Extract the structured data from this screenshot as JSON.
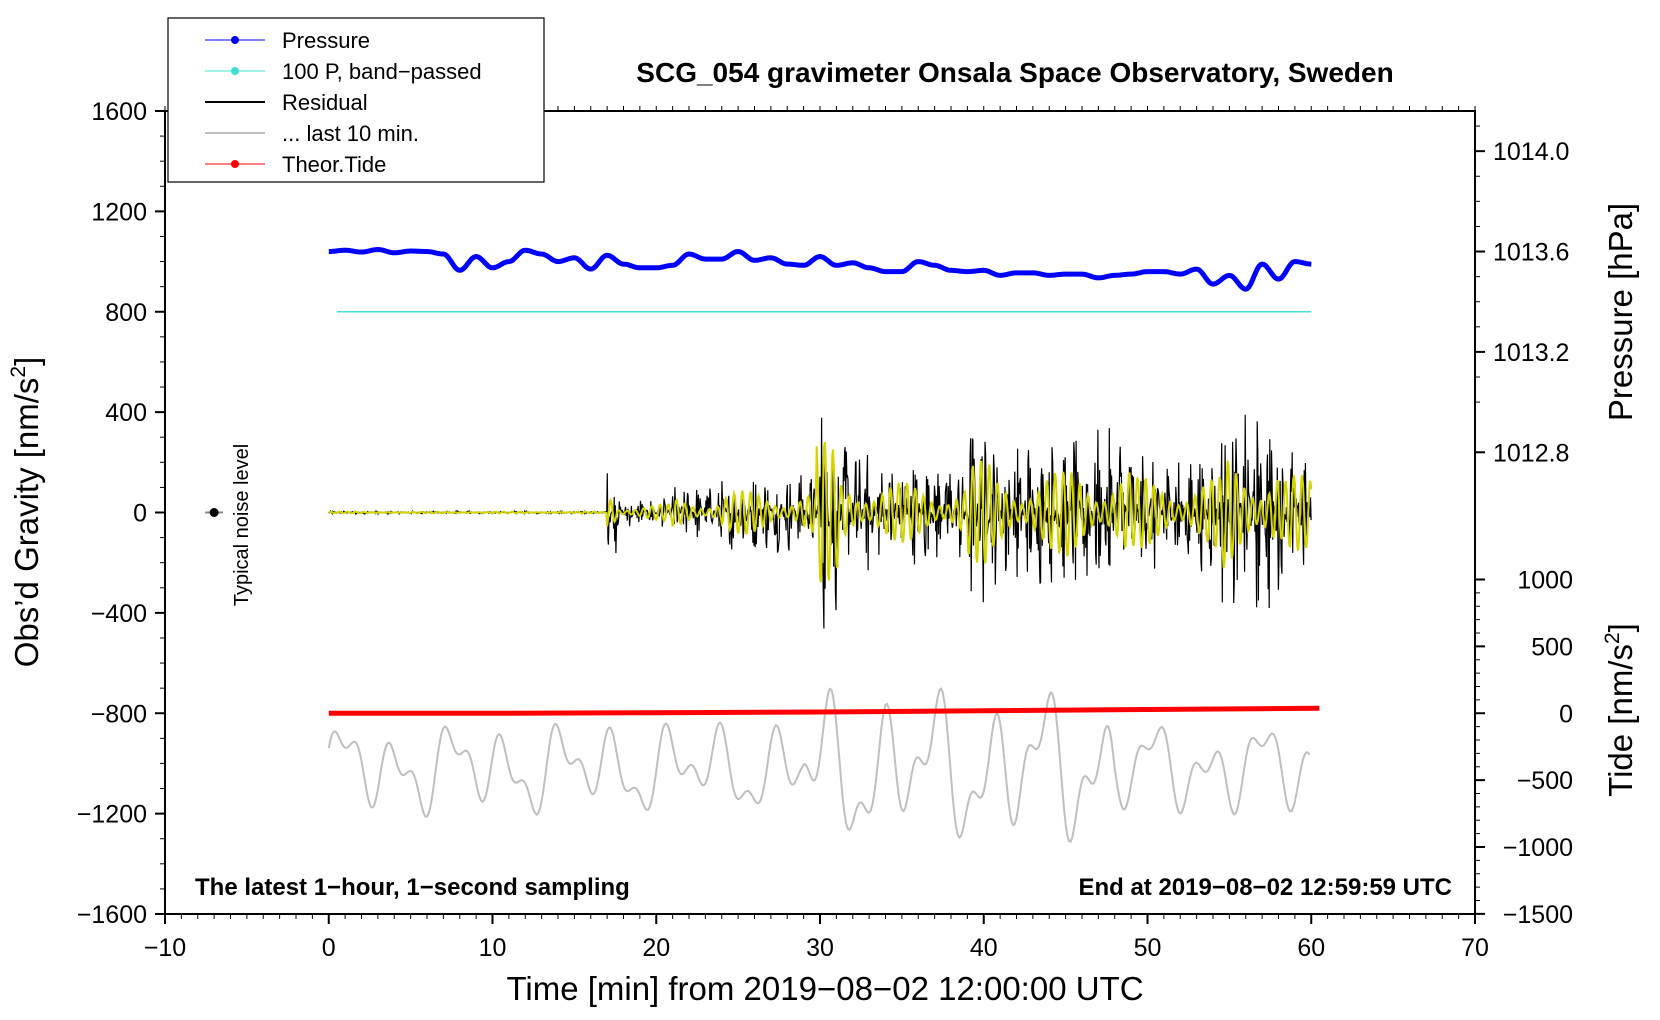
{
  "colors": {
    "pressure": "#0000ff",
    "bandpassed": "#40e0d0",
    "residual": "#000000",
    "last10": "#bfbfbf",
    "tide": "#ff0000",
    "highlight": "#d4d400"
  },
  "chart_data": {
    "type": "line",
    "title": "SCG_054 gravimeter Onsala Space Observatory, Sweden",
    "xlabel": "Time [min] from 2019−08−02 12:00:00 UTC",
    "ylabel_left": "Obs’d Gravity [nm/s",
    "ylabel_right_top": "Pressure [hPa]",
    "ylabel_right_bottom": "Tide [nm/s",
    "unit_superscript": "2",
    "unit_close": "]",
    "xlim": [
      -10,
      70
    ],
    "ylim_left": [
      -1600,
      1600
    ],
    "xticks": [
      -10,
      0,
      10,
      20,
      30,
      40,
      50,
      60,
      70
    ],
    "xtick_labels": [
      "−10",
      "0",
      "10",
      "20",
      "30",
      "40",
      "50",
      "60",
      "70"
    ],
    "yticks_left": [
      1600,
      1200,
      800,
      400,
      0,
      -400,
      -800,
      -1200,
      -1600
    ],
    "ytick_labels_left": [
      "1600",
      "1200",
      "800",
      "400",
      "0",
      "−400",
      "−800",
      "−1200",
      "−1600"
    ],
    "pressure_axis": {
      "ticks": [
        1014.0,
        1013.6,
        1013.2,
        1012.8
      ],
      "labels": [
        "1014.0",
        "1013.6",
        "1013.2",
        "1012.8"
      ],
      "left_at_1014": 1440,
      "left_per_hpa": 1000
    },
    "tide_axis": {
      "ticks": [
        1000,
        500,
        0,
        -500,
        -1000,
        -1500
      ],
      "labels": [
        "1000",
        "500",
        "0",
        "−500",
        "−1000",
        "−1500"
      ],
      "left_at_0": -800,
      "left_per_unit": 0.533
    },
    "annotation_left": "The latest 1−hour, 1−second sampling",
    "annotation_right": "End at 2019−08−02 12:59:59 UTC",
    "noise_label": "Typical noise level",
    "noise_marker": {
      "x": -7,
      "y": 0,
      "err": 25
    },
    "legend": [
      {
        "label": "Pressure",
        "color": "#0000ff",
        "marker": true,
        "width": 1
      },
      {
        "label": "100 P, band−passed",
        "color": "#40e0d0",
        "marker": true,
        "width": 1
      },
      {
        "label": "Residual",
        "color": "#000000",
        "marker": false,
        "width": 2
      },
      {
        "label": "... last 10 min.",
        "color": "#bfbfbf",
        "marker": false,
        "width": 2
      },
      {
        "label": "Theor.Tide",
        "color": "#ff0000",
        "marker": true,
        "width": 1
      }
    ],
    "series": [
      {
        "name": "Pressure",
        "units": "left-axis nm/s2 equivalent",
        "x": [
          0,
          1,
          2,
          3,
          4,
          5,
          6,
          7,
          8,
          9,
          10,
          11,
          12,
          13,
          14,
          15,
          16,
          17,
          18,
          19,
          20,
          21,
          22,
          23,
          24,
          25,
          26,
          27,
          28,
          29,
          30,
          31,
          32,
          33,
          34,
          35,
          36,
          37,
          38,
          39,
          40,
          41,
          42,
          43,
          44,
          45,
          46,
          47,
          48,
          49,
          50,
          51,
          52,
          53,
          54,
          55,
          56,
          57,
          58,
          59,
          60
        ],
        "y": [
          1040,
          1045,
          1038,
          1048,
          1035,
          1042,
          1040,
          1030,
          965,
          1020,
          975,
          1000,
          1045,
          1030,
          1000,
          1015,
          970,
          1025,
          990,
          975,
          975,
          985,
          1030,
          1010,
          1010,
          1040,
          1005,
          1015,
          990,
          985,
          1020,
          985,
          995,
          975,
          960,
          960,
          1000,
          985,
          965,
          960,
          965,
          945,
          955,
          955,
          945,
          950,
          950,
          935,
          945,
          950,
          960,
          960,
          950,
          970,
          910,
          945,
          890,
          990,
          930,
          1000,
          990
        ]
      },
      {
        "name": "100 P, band−passed",
        "x": [
          0.5,
          60
        ],
        "y": [
          800,
          800
        ]
      },
      {
        "name": "Theor.Tide",
        "x": [
          0,
          10,
          20,
          30,
          40,
          50,
          60.5
        ],
        "y": [
          -800,
          -800,
          -798,
          -795,
          -790,
          -785,
          -780
        ]
      }
    ]
  }
}
